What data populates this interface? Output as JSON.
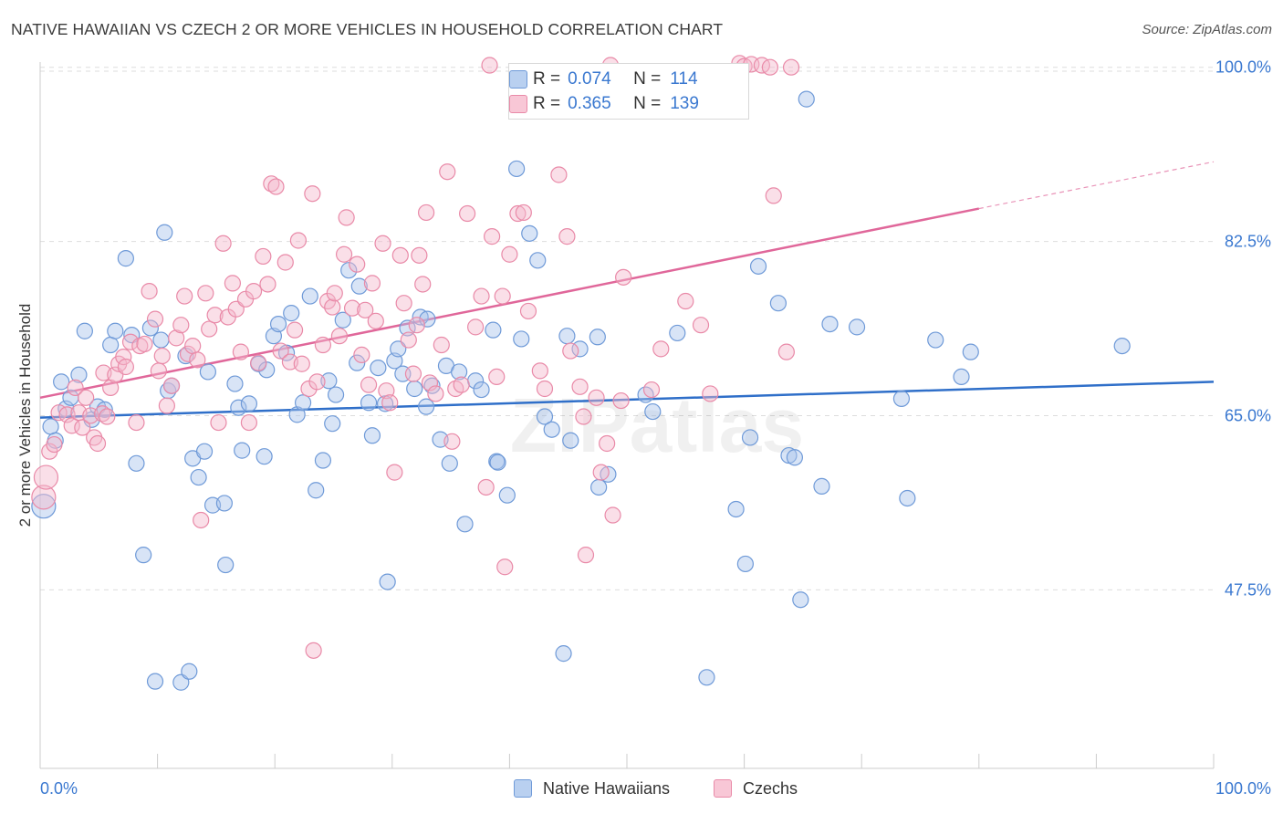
{
  "title": "NATIVE HAWAIIAN VS CZECH 2 OR MORE VEHICLES IN HOUSEHOLD CORRELATION CHART",
  "source": "Source: ZipAtlas.com",
  "watermark": "ZIPatlas",
  "colors": {
    "blue_fill": "#a9c4ec",
    "blue_stroke": "#6f9ad8",
    "blue_line": "#2f6fc9",
    "pink_fill": "#f5b8cb",
    "pink_stroke": "#e98aa8",
    "pink_line": "#e0679a",
    "axis_text": "#3a78d0",
    "grid": "#dddddd"
  },
  "legend_top": [
    {
      "r_label": "R =",
      "r_value": "0.074",
      "n_label": "N =",
      "n_value": "114"
    },
    {
      "r_label": "R =",
      "r_value": "0.365",
      "n_label": "N =",
      "n_value": "139"
    }
  ],
  "legend_bottom": [
    "Native Hawaiians",
    "Czechs"
  ],
  "chart_data": {
    "type": "scatter",
    "title": "NATIVE HAWAIIAN VS CZECH 2 OR MORE VEHICLES IN HOUSEHOLD CORRELATION CHART",
    "xlabel": "",
    "ylabel": "2 or more Vehicles in Household",
    "xlim": [
      0,
      100
    ],
    "ylim": [
      30,
      101.5
    ],
    "x_tick_labels": [
      "0.0%",
      "100.0%"
    ],
    "y_ticks": [
      47.5,
      65.0,
      82.5,
      100.0
    ],
    "y_tick_labels": [
      "47.5%",
      "65.0%",
      "82.5%",
      "100.0%"
    ],
    "grid": true,
    "legend_placement": "top-center",
    "series": [
      {
        "name": "Native Hawaiians",
        "r": 0.074,
        "n": 114,
        "trend": {
          "x0": 0,
          "y0": 64.8,
          "x1": 100,
          "y1": 68.4
        },
        "points": [
          [
            0.3,
            55.9
          ],
          [
            0.9,
            63.9
          ],
          [
            1.3,
            62.5
          ],
          [
            1.8,
            68.4
          ],
          [
            2.2,
            65.7
          ],
          [
            2.6,
            66.8
          ],
          [
            3.3,
            69.1
          ],
          [
            3.8,
            73.5
          ],
          [
            4.4,
            64.6
          ],
          [
            4.9,
            65.9
          ],
          [
            5.5,
            65.6
          ],
          [
            6.0,
            72.1
          ],
          [
            6.4,
            73.5
          ],
          [
            7.3,
            80.8
          ],
          [
            7.8,
            73.1
          ],
          [
            8.2,
            60.2
          ],
          [
            8.8,
            51.0
          ],
          [
            9.4,
            73.8
          ],
          [
            9.8,
            38.3
          ],
          [
            10.3,
            72.6
          ],
          [
            10.6,
            83.4
          ],
          [
            10.9,
            67.5
          ],
          [
            11.2,
            68.0
          ],
          [
            12.0,
            38.2
          ],
          [
            12.4,
            71.0
          ],
          [
            12.7,
            39.3
          ],
          [
            13.0,
            60.7
          ],
          [
            13.5,
            58.8
          ],
          [
            14.0,
            61.4
          ],
          [
            14.3,
            69.4
          ],
          [
            14.7,
            56.0
          ],
          [
            15.7,
            56.2
          ],
          [
            15.8,
            50.0
          ],
          [
            16.6,
            68.2
          ],
          [
            16.9,
            65.8
          ],
          [
            17.2,
            61.5
          ],
          [
            17.8,
            66.2
          ],
          [
            18.6,
            70.2
          ],
          [
            19.1,
            60.9
          ],
          [
            19.3,
            69.6
          ],
          [
            19.9,
            73.0
          ],
          [
            20.3,
            74.2
          ],
          [
            21.0,
            71.3
          ],
          [
            21.4,
            75.3
          ],
          [
            21.9,
            65.1
          ],
          [
            22.4,
            66.3
          ],
          [
            23.0,
            77.0
          ],
          [
            23.5,
            57.5
          ],
          [
            24.1,
            60.5
          ],
          [
            24.6,
            68.5
          ],
          [
            24.9,
            64.2
          ],
          [
            25.2,
            67.1
          ],
          [
            25.8,
            74.6
          ],
          [
            26.3,
            79.6
          ],
          [
            27.0,
            70.3
          ],
          [
            27.2,
            78.0
          ],
          [
            28.0,
            66.3
          ],
          [
            28.3,
            63.0
          ],
          [
            28.8,
            69.8
          ],
          [
            29.4,
            66.2
          ],
          [
            29.6,
            48.3
          ],
          [
            30.2,
            70.5
          ],
          [
            30.5,
            71.7
          ],
          [
            30.9,
            69.2
          ],
          [
            31.3,
            73.8
          ],
          [
            31.9,
            67.7
          ],
          [
            32.4,
            74.9
          ],
          [
            32.9,
            65.9
          ],
          [
            33.0,
            74.7
          ],
          [
            33.4,
            68.0
          ],
          [
            34.1,
            62.6
          ],
          [
            34.6,
            70.0
          ],
          [
            34.9,
            60.2
          ],
          [
            35.7,
            69.4
          ],
          [
            36.2,
            54.1
          ],
          [
            37.1,
            68.5
          ],
          [
            37.6,
            67.6
          ],
          [
            38.6,
            73.6
          ],
          [
            38.9,
            60.4
          ],
          [
            39.0,
            60.3
          ],
          [
            39.8,
            57.0
          ],
          [
            40.6,
            89.8
          ],
          [
            41.0,
            72.7
          ],
          [
            41.7,
            83.3
          ],
          [
            42.4,
            80.6
          ],
          [
            43.0,
            64.9
          ],
          [
            43.6,
            63.6
          ],
          [
            44.6,
            41.1
          ],
          [
            44.9,
            73.0
          ],
          [
            45.2,
            62.5
          ],
          [
            46.0,
            71.7
          ],
          [
            47.5,
            72.9
          ],
          [
            47.6,
            57.8
          ],
          [
            48.4,
            59.1
          ],
          [
            51.6,
            67.1
          ],
          [
            52.2,
            65.4
          ],
          [
            54.3,
            73.3
          ],
          [
            56.8,
            38.7
          ],
          [
            59.3,
            55.6
          ],
          [
            60.1,
            50.1
          ],
          [
            61.2,
            80.0
          ],
          [
            60.5,
            62.8
          ],
          [
            62.9,
            76.3
          ],
          [
            63.8,
            61.0
          ],
          [
            64.3,
            60.8
          ],
          [
            64.8,
            46.5
          ],
          [
            65.3,
            96.8
          ],
          [
            66.6,
            57.9
          ],
          [
            67.3,
            74.2
          ],
          [
            69.6,
            73.9
          ],
          [
            73.4,
            66.7
          ],
          [
            73.9,
            56.7
          ],
          [
            76.3,
            72.6
          ],
          [
            78.5,
            68.9
          ],
          [
            79.3,
            71.4
          ],
          [
            92.2,
            72.0
          ]
        ]
      },
      {
        "name": "Czechs",
        "r": 0.365,
        "n": 139,
        "trend": {
          "x0": 0,
          "y0": 66.8,
          "x1": 80,
          "y1": 85.8,
          "dashed_to": {
            "x": 100,
            "y": 90.5
          }
        },
        "points": [
          [
            0.3,
            56.8
          ],
          [
            0.5,
            58.8
          ],
          [
            0.8,
            61.4
          ],
          [
            1.2,
            62.1
          ],
          [
            1.6,
            65.3
          ],
          [
            2.3,
            65.1
          ],
          [
            2.7,
            64.0
          ],
          [
            3.0,
            67.8
          ],
          [
            3.3,
            65.3
          ],
          [
            3.6,
            63.8
          ],
          [
            3.9,
            66.8
          ],
          [
            4.3,
            65.0
          ],
          [
            4.6,
            62.8
          ],
          [
            4.9,
            62.2
          ],
          [
            5.3,
            65.2
          ],
          [
            5.4,
            69.3
          ],
          [
            5.7,
            64.9
          ],
          [
            6.0,
            67.8
          ],
          [
            6.4,
            69.1
          ],
          [
            6.7,
            70.2
          ],
          [
            7.1,
            70.9
          ],
          [
            7.3,
            69.9
          ],
          [
            7.7,
            72.4
          ],
          [
            8.2,
            64.3
          ],
          [
            8.5,
            72.0
          ],
          [
            8.9,
            72.2
          ],
          [
            9.3,
            77.5
          ],
          [
            9.8,
            74.7
          ],
          [
            10.1,
            69.5
          ],
          [
            10.4,
            71.0
          ],
          [
            10.8,
            66.0
          ],
          [
            11.2,
            68.0
          ],
          [
            11.6,
            72.8
          ],
          [
            12.0,
            74.1
          ],
          [
            12.3,
            77.0
          ],
          [
            12.6,
            71.2
          ],
          [
            13.0,
            72.0
          ],
          [
            13.4,
            70.6
          ],
          [
            13.7,
            54.5
          ],
          [
            14.1,
            77.3
          ],
          [
            14.4,
            73.7
          ],
          [
            14.9,
            75.1
          ],
          [
            15.2,
            64.3
          ],
          [
            15.6,
            82.3
          ],
          [
            16.0,
            74.9
          ],
          [
            16.4,
            78.3
          ],
          [
            16.7,
            75.7
          ],
          [
            17.1,
            71.4
          ],
          [
            17.5,
            76.7
          ],
          [
            17.8,
            64.3
          ],
          [
            18.2,
            77.5
          ],
          [
            18.6,
            70.3
          ],
          [
            19.0,
            81.0
          ],
          [
            19.4,
            78.2
          ],
          [
            19.7,
            88.3
          ],
          [
            20.1,
            88.0
          ],
          [
            20.5,
            71.5
          ],
          [
            20.9,
            80.4
          ],
          [
            21.3,
            70.4
          ],
          [
            21.7,
            73.6
          ],
          [
            22.0,
            82.6
          ],
          [
            22.3,
            70.2
          ],
          [
            22.9,
            67.7
          ],
          [
            23.2,
            87.3
          ],
          [
            23.3,
            41.4
          ],
          [
            23.6,
            68.4
          ],
          [
            24.1,
            72.1
          ],
          [
            24.5,
            76.5
          ],
          [
            24.9,
            75.9
          ],
          [
            25.1,
            77.3
          ],
          [
            25.5,
            73.0
          ],
          [
            25.9,
            81.2
          ],
          [
            26.1,
            84.9
          ],
          [
            26.6,
            75.8
          ],
          [
            27.0,
            80.2
          ],
          [
            27.4,
            71.1
          ],
          [
            27.7,
            75.6
          ],
          [
            28.0,
            68.1
          ],
          [
            28.3,
            78.3
          ],
          [
            28.6,
            74.5
          ],
          [
            29.2,
            82.3
          ],
          [
            29.5,
            67.5
          ],
          [
            29.8,
            66.3
          ],
          [
            30.2,
            59.3
          ],
          [
            30.7,
            81.1
          ],
          [
            31.0,
            76.3
          ],
          [
            31.4,
            72.6
          ],
          [
            31.8,
            69.2
          ],
          [
            32.1,
            74.1
          ],
          [
            32.3,
            81.1
          ],
          [
            32.6,
            78.2
          ],
          [
            32.9,
            85.4
          ],
          [
            33.2,
            68.3
          ],
          [
            33.7,
            67.2
          ],
          [
            34.2,
            72.1
          ],
          [
            34.7,
            89.5
          ],
          [
            35.1,
            62.4
          ],
          [
            35.4,
            67.7
          ],
          [
            35.9,
            68.1
          ],
          [
            36.4,
            85.3
          ],
          [
            37.1,
            73.9
          ],
          [
            37.6,
            77.0
          ],
          [
            38.0,
            57.8
          ],
          [
            38.5,
            83.0
          ],
          [
            38.9,
            68.9
          ],
          [
            39.4,
            77.0
          ],
          [
            39.6,
            49.8
          ],
          [
            40.0,
            81.2
          ],
          [
            40.7,
            85.3
          ],
          [
            41.2,
            85.4
          ],
          [
            41.6,
            75.5
          ],
          [
            42.6,
            69.5
          ],
          [
            43.0,
            67.7
          ],
          [
            44.2,
            89.2
          ],
          [
            44.9,
            83.0
          ],
          [
            45.2,
            71.5
          ],
          [
            46.0,
            67.9
          ],
          [
            46.3,
            64.9
          ],
          [
            46.5,
            51.0
          ],
          [
            47.4,
            66.8
          ],
          [
            47.8,
            59.3
          ],
          [
            48.3,
            62.2
          ],
          [
            48.8,
            55.0
          ],
          [
            49.5,
            66.5
          ],
          [
            49.7,
            78.9
          ],
          [
            52.1,
            67.6
          ],
          [
            52.9,
            71.7
          ],
          [
            55.0,
            76.5
          ],
          [
            56.3,
            74.1
          ],
          [
            57.1,
            67.2
          ],
          [
            59.6,
            100.4
          ],
          [
            60.0,
            100.1
          ],
          [
            60.6,
            100.3
          ],
          [
            61.5,
            100.2
          ],
          [
            62.2,
            100.0
          ],
          [
            62.5,
            87.1
          ],
          [
            63.6,
            71.4
          ],
          [
            64.0,
            100.0
          ],
          [
            38.3,
            100.2
          ],
          [
            48.6,
            100.2
          ]
        ]
      }
    ]
  }
}
